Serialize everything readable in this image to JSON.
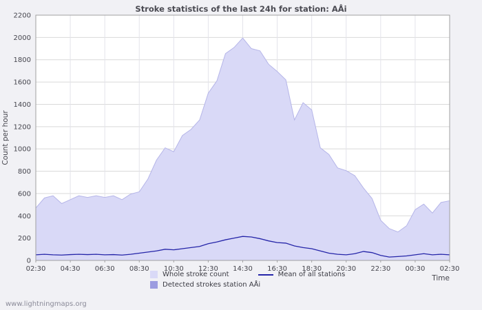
{
  "title": "Stroke statistics of the last 24h for station: AÅi",
  "footer": "www.lightningmaps.org",
  "legend": {
    "whole": "Whole stroke count",
    "mean": "Mean of all stations",
    "detected": "Detected strokes station AÅi"
  },
  "colors": {
    "area_whole": "#d9d9f7",
    "area_whole_edge": "#b5b5e8",
    "area_detected": "#9c9ce0",
    "mean_line": "#2424a8",
    "grid_h": "#d9d9d9",
    "grid_v": "#e3e3ea",
    "axis": "#a0a0a0",
    "plot_bg": "#ffffff"
  },
  "chart_data": {
    "type": "area",
    "title": "Stroke statistics of the last 24h for station: AÅi",
    "ylabel": "Count per hour",
    "xlabel": "Time",
    "ylim": [
      0,
      2200
    ],
    "ytick_step": 200,
    "grid": true,
    "legend_position": "bottom",
    "xtick_every": 4,
    "x": [
      "02:30",
      "03:00",
      "03:30",
      "04:00",
      "04:30",
      "05:00",
      "05:30",
      "06:00",
      "06:30",
      "07:00",
      "07:30",
      "08:00",
      "08:30",
      "09:00",
      "09:30",
      "10:00",
      "10:30",
      "11:00",
      "11:30",
      "12:00",
      "12:30",
      "13:00",
      "13:30",
      "14:00",
      "14:30",
      "15:00",
      "15:30",
      "16:00",
      "16:30",
      "17:00",
      "17:30",
      "18:00",
      "18:30",
      "19:00",
      "19:30",
      "20:00",
      "20:30",
      "21:00",
      "21:30",
      "22:00",
      "22:30",
      "23:00",
      "23:30",
      "00:00",
      "00:30",
      "01:00",
      "01:30",
      "02:00",
      "02:30"
    ],
    "series": [
      {
        "name": "Whole stroke count",
        "style": "area",
        "color": "#d9d9f7",
        "edge": "#b5b5e8",
        "values": [
          470,
          560,
          580,
          510,
          545,
          580,
          565,
          580,
          565,
          580,
          545,
          595,
          615,
          730,
          900,
          1010,
          975,
          1120,
          1175,
          1260,
          1500,
          1610,
          1855,
          1910,
          1995,
          1900,
          1880,
          1760,
          1695,
          1620,
          1260,
          1415,
          1350,
          1010,
          950,
          830,
          805,
          760,
          650,
          555,
          360,
          285,
          255,
          310,
          455,
          505,
          425,
          520,
          535
        ]
      },
      {
        "name": "Detected strokes station AÅi",
        "style": "area",
        "color": "#9c9ce0",
        "edge": "#8a8ad0",
        "values": [
          0,
          0,
          0,
          0,
          0,
          0,
          0,
          0,
          0,
          0,
          0,
          0,
          0,
          0,
          0,
          0,
          0,
          0,
          0,
          0,
          0,
          0,
          0,
          0,
          0,
          0,
          0,
          0,
          0,
          0,
          0,
          0,
          0,
          0,
          0,
          0,
          0,
          0,
          0,
          0,
          0,
          0,
          0,
          0,
          0,
          0,
          0,
          0,
          0
        ]
      },
      {
        "name": "Mean of all stations",
        "style": "line",
        "color": "#2424a8",
        "values": [
          50,
          55,
          50,
          48,
          52,
          55,
          52,
          55,
          50,
          52,
          48,
          55,
          65,
          75,
          85,
          100,
          95,
          105,
          115,
          125,
          150,
          165,
          185,
          200,
          215,
          210,
          195,
          175,
          160,
          155,
          130,
          115,
          105,
          85,
          65,
          55,
          50,
          60,
          80,
          70,
          45,
          30,
          35,
          40,
          50,
          60,
          50,
          55,
          50
        ]
      }
    ]
  }
}
